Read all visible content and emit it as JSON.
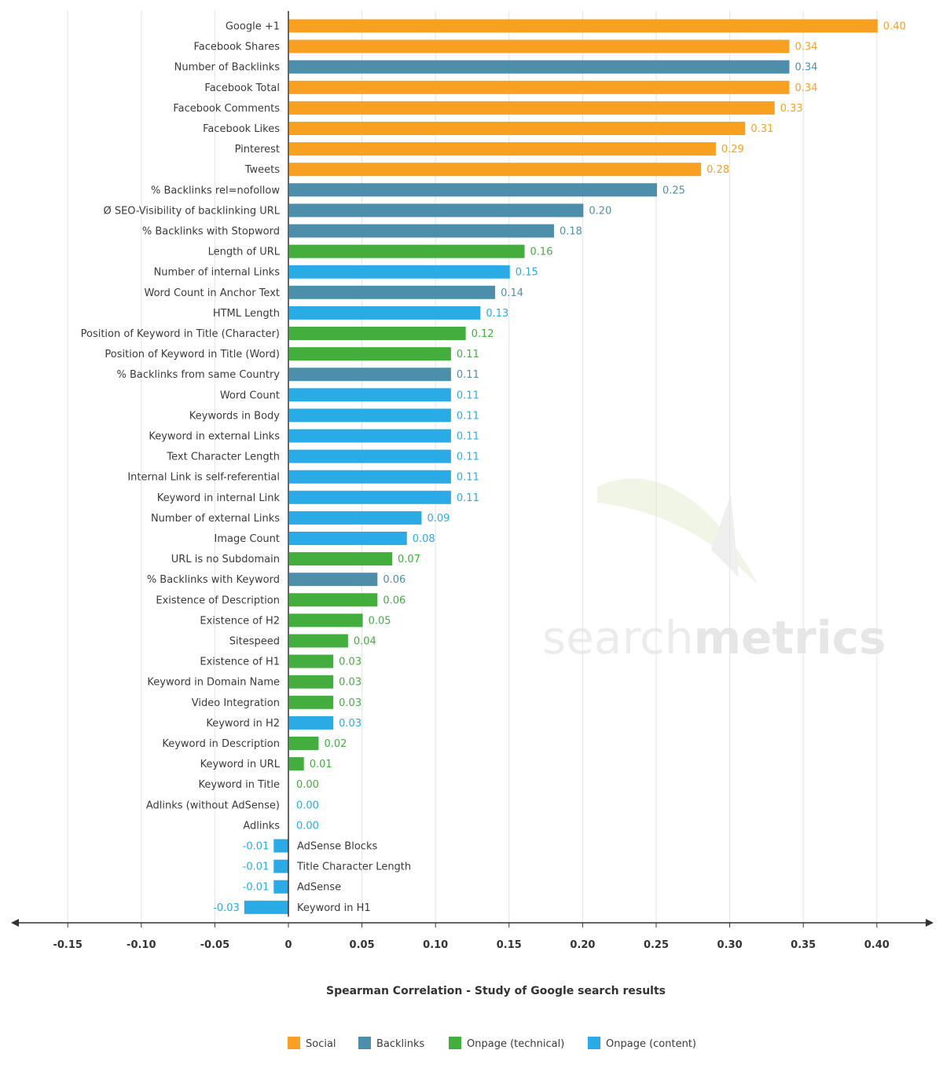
{
  "colors": {
    "Social": "#f7a021",
    "Backlinks": "#4d8fab",
    "Onpage (technical)": "#43ad3d",
    "Onpage (content)": "#2aabe6",
    "axis": "#333333",
    "grid": "#e3e3e3"
  },
  "watermark": {
    "light": "search",
    "bold": "metrics"
  },
  "chart_data": {
    "type": "bar",
    "orientation": "horizontal",
    "xlabel": "Spearman Correlation - Study of Google search results",
    "xlim": [
      -0.18,
      0.43
    ],
    "grid": true,
    "legend_position": "bottom",
    "x_ticks": [
      {
        "value": -0.15,
        "label": "-0.15"
      },
      {
        "value": -0.1,
        "label": "-0.10"
      },
      {
        "value": -0.05,
        "label": "-0.05"
      },
      {
        "value": 0,
        "label": "0"
      },
      {
        "value": 0.05,
        "label": "0.05"
      },
      {
        "value": 0.1,
        "label": "0.10"
      },
      {
        "value": 0.15,
        "label": "0.15"
      },
      {
        "value": 0.2,
        "label": "0.20"
      },
      {
        "value": 0.25,
        "label": "0.25"
      },
      {
        "value": 0.3,
        "label": "0.30"
      },
      {
        "value": 0.35,
        "label": "0.35"
      },
      {
        "value": 0.4,
        "label": "0.40"
      }
    ],
    "legend": [
      "Social",
      "Backlinks",
      "Onpage (technical)",
      "Onpage (content)"
    ],
    "bars": [
      {
        "category": "Google +1",
        "value": 0.4,
        "label": "0.40",
        "group": "Social"
      },
      {
        "category": "Facebook Shares",
        "value": 0.34,
        "label": "0.34",
        "group": "Social"
      },
      {
        "category": "Number of Backlinks",
        "value": 0.34,
        "label": "0.34",
        "group": "Backlinks"
      },
      {
        "category": "Facebook Total",
        "value": 0.34,
        "label": "0.34",
        "group": "Social"
      },
      {
        "category": "Facebook Comments",
        "value": 0.33,
        "label": "0.33",
        "group": "Social"
      },
      {
        "category": "Facebook Likes",
        "value": 0.31,
        "label": "0.31",
        "group": "Social"
      },
      {
        "category": "Pinterest",
        "value": 0.29,
        "label": "0.29",
        "group": "Social"
      },
      {
        "category": "Tweets",
        "value": 0.28,
        "label": "0.28",
        "group": "Social"
      },
      {
        "category": "% Backlinks rel=nofollow",
        "value": 0.25,
        "label": "0.25",
        "group": "Backlinks"
      },
      {
        "category": "Ø SEO-Visibility of backlinking URL",
        "value": 0.2,
        "label": "0.20",
        "group": "Backlinks"
      },
      {
        "category": "% Backlinks with Stopword",
        "value": 0.18,
        "label": "0.18",
        "group": "Backlinks"
      },
      {
        "category": "Length of URL",
        "value": 0.16,
        "label": "0.16",
        "group": "Onpage (technical)"
      },
      {
        "category": "Number of internal Links",
        "value": 0.15,
        "label": "0.15",
        "group": "Onpage (content)"
      },
      {
        "category": "Word Count in Anchor Text",
        "value": 0.14,
        "label": "0.14",
        "group": "Backlinks"
      },
      {
        "category": "HTML Length",
        "value": 0.13,
        "label": "0.13",
        "group": "Onpage (content)"
      },
      {
        "category": "Position of Keyword in Title (Character)",
        "value": 0.12,
        "label": "0.12",
        "group": "Onpage (technical)"
      },
      {
        "category": "Position of Keyword in Title (Word)",
        "value": 0.11,
        "label": "0.11",
        "group": "Onpage (technical)"
      },
      {
        "category": "% Backlinks from same Country",
        "value": 0.11,
        "label": "0.11",
        "group": "Backlinks"
      },
      {
        "category": "Word Count",
        "value": 0.11,
        "label": "0.11",
        "group": "Onpage (content)"
      },
      {
        "category": "Keywords in Body",
        "value": 0.11,
        "label": "0.11",
        "group": "Onpage (content)"
      },
      {
        "category": "Keyword in external Links",
        "value": 0.11,
        "label": "0.11",
        "group": "Onpage (content)"
      },
      {
        "category": "Text Character Length",
        "value": 0.11,
        "label": "0.11",
        "group": "Onpage (content)"
      },
      {
        "category": "Internal Link is self-referential",
        "value": 0.11,
        "label": "0.11",
        "group": "Onpage (content)"
      },
      {
        "category": "Keyword in internal Link",
        "value": 0.11,
        "label": "0.11",
        "group": "Onpage (content)"
      },
      {
        "category": "Number of external Links",
        "value": 0.09,
        "label": "0.09",
        "group": "Onpage (content)"
      },
      {
        "category": "Image Count",
        "value": 0.08,
        "label": "0.08",
        "group": "Onpage (content)"
      },
      {
        "category": "URL is no Subdomain",
        "value": 0.07,
        "label": "0.07",
        "group": "Onpage (technical)"
      },
      {
        "category": "% Backlinks with Keyword",
        "value": 0.06,
        "label": "0.06",
        "group": "Backlinks"
      },
      {
        "category": "Existence of Description",
        "value": 0.06,
        "label": "0.06",
        "group": "Onpage (technical)"
      },
      {
        "category": "Existence of H2",
        "value": 0.05,
        "label": "0.05",
        "group": "Onpage (technical)"
      },
      {
        "category": "Sitespeed",
        "value": 0.04,
        "label": "0.04",
        "group": "Onpage (technical)"
      },
      {
        "category": "Existence of H1",
        "value": 0.03,
        "label": "0.03",
        "group": "Onpage (technical)"
      },
      {
        "category": "Keyword in Domain Name",
        "value": 0.03,
        "label": "0.03",
        "group": "Onpage (technical)"
      },
      {
        "category": "Video Integration",
        "value": 0.03,
        "label": "0.03",
        "group": "Onpage (technical)"
      },
      {
        "category": "Keyword in H2",
        "value": 0.03,
        "label": "0.03",
        "group": "Onpage (content)"
      },
      {
        "category": "Keyword in Description",
        "value": 0.02,
        "label": "0.02",
        "group": "Onpage (technical)"
      },
      {
        "category": "Keyword in URL",
        "value": 0.01,
        "label": "0.01",
        "group": "Onpage (technical)"
      },
      {
        "category": "Keyword in Title",
        "value": 0.0,
        "label": "0.00",
        "group": "Onpage (technical)"
      },
      {
        "category": "Adlinks (without AdSense)",
        "value": 0.0,
        "label": "0.00",
        "group": "Onpage (content)"
      },
      {
        "category": "Adlinks",
        "value": 0.0,
        "label": "0.00",
        "group": "Onpage (content)"
      },
      {
        "category": "AdSense Blocks",
        "value": -0.01,
        "label": "-0.01",
        "group": "Onpage (content)"
      },
      {
        "category": "Title Character Length",
        "value": -0.01,
        "label": "-0.01",
        "group": "Onpage (content)"
      },
      {
        "category": "AdSense",
        "value": -0.01,
        "label": "-0.01",
        "group": "Onpage (content)"
      },
      {
        "category": "Keyword in H1",
        "value": -0.03,
        "label": "-0.03",
        "group": "Onpage (content)"
      }
    ]
  }
}
